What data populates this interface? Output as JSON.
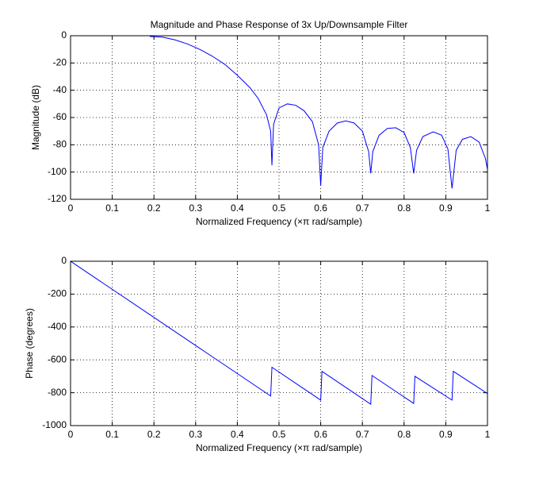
{
  "chart_data": [
    {
      "type": "line",
      "title": "Magnitude and Phase Response of 3x Up/Downsample Filter",
      "xlabel": "Normalized Frequency  (×π rad/sample)",
      "ylabel": "Magnitude (dB)",
      "x": [
        0.19,
        0.22,
        0.25,
        0.28,
        0.31,
        0.34,
        0.37,
        0.4,
        0.43,
        0.45,
        0.47,
        0.48,
        0.483,
        0.487,
        0.5,
        0.52,
        0.54,
        0.56,
        0.58,
        0.595,
        0.6,
        0.605,
        0.62,
        0.64,
        0.66,
        0.68,
        0.7,
        0.715,
        0.72,
        0.725,
        0.74,
        0.76,
        0.78,
        0.8,
        0.815,
        0.823,
        0.83,
        0.845,
        0.87,
        0.89,
        0.905,
        0.915,
        0.925,
        0.94,
        0.96,
        0.98,
        0.995,
        1.0
      ],
      "values": [
        -0.5,
        -1,
        -3,
        -6,
        -10,
        -15,
        -21,
        -29,
        -38,
        -46,
        -58,
        -70,
        -95,
        -65,
        -53,
        -50,
        -51,
        -55,
        -63,
        -80,
        -110,
        -82,
        -70,
        -64,
        -62.5,
        -64,
        -70,
        -85,
        -101,
        -85,
        -73,
        -68,
        -67.5,
        -71,
        -82,
        -101,
        -84,
        -74,
        -70.5,
        -73,
        -83,
        -112,
        -84,
        -76,
        -74,
        -78,
        -90,
        -98
      ],
      "color": "#0000ff",
      "xlim": [
        0,
        1
      ],
      "xticks": [
        0,
        0.1,
        0.2,
        0.3,
        0.4,
        0.5,
        0.6,
        0.7,
        0.8,
        0.9,
        1
      ],
      "ylim": [
        -120,
        0
      ],
      "yticks": [
        0,
        -20,
        -40,
        -60,
        -80,
        -100,
        -120
      ],
      "grid": true
    },
    {
      "type": "line",
      "xlabel": "Normalized Frequency  (×π rad/sample)",
      "ylabel": "Phase (degrees)",
      "x": [
        0,
        0.48,
        0.483,
        0.6,
        0.603,
        0.72,
        0.723,
        0.823,
        0.826,
        0.915,
        0.918,
        1.0
      ],
      "values": [
        0,
        -820,
        -645,
        -845,
        -670,
        -870,
        -695,
        -865,
        -700,
        -845,
        -670,
        -805
      ],
      "color": "#0000ff",
      "xlim": [
        0,
        1
      ],
      "xticks": [
        0,
        0.1,
        0.2,
        0.3,
        0.4,
        0.5,
        0.6,
        0.7,
        0.8,
        0.9,
        1
      ],
      "ylim": [
        -1000,
        0
      ],
      "yticks": [
        0,
        -200,
        -400,
        -600,
        -800,
        -1000
      ],
      "grid": true
    }
  ]
}
